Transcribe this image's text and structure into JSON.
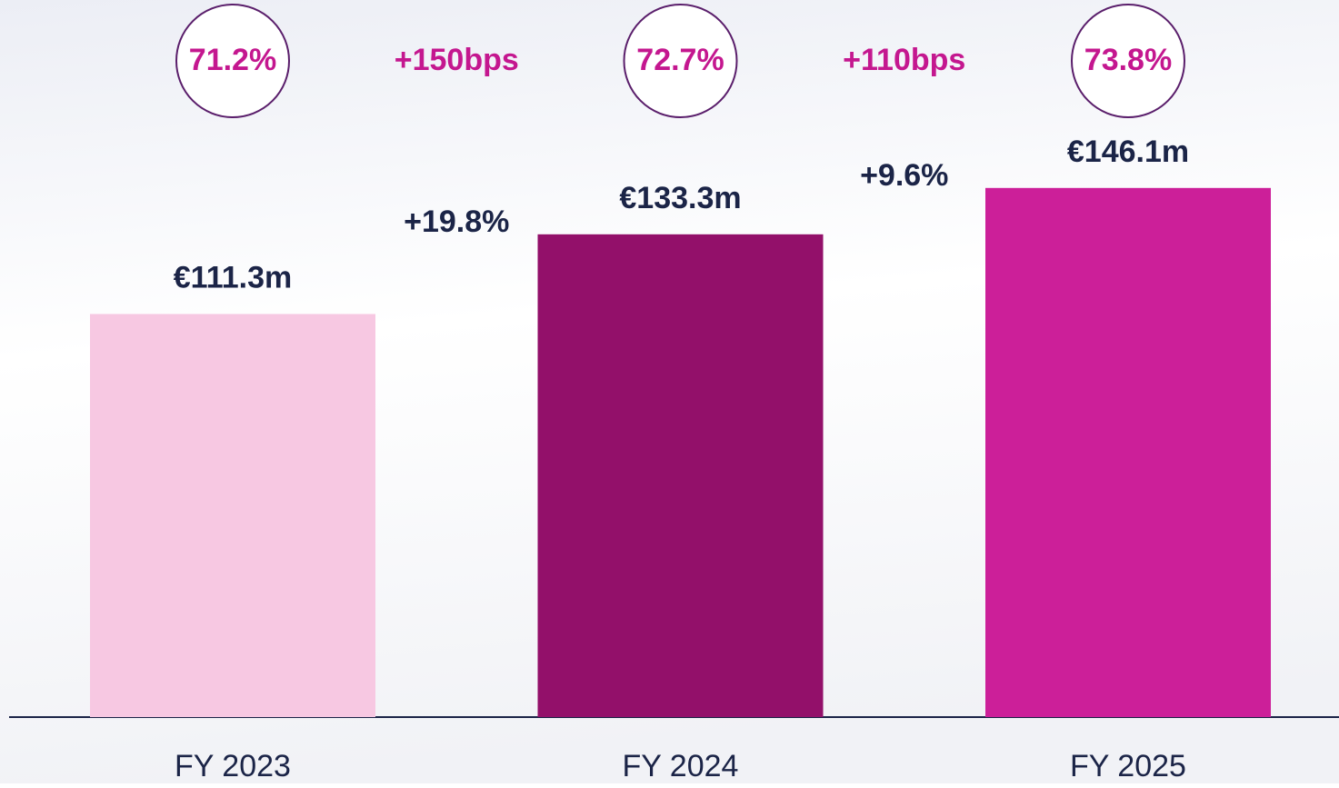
{
  "chart_data": {
    "type": "bar",
    "categories": [
      "FY 2023",
      "FY 2024",
      "FY 2025"
    ],
    "values": [
      111.3,
      133.3,
      146.1
    ],
    "value_labels": [
      "€111.3m",
      "€133.3m",
      "€146.1m"
    ],
    "colors": [
      "#f7c8e2",
      "#93106a",
      "#cc1f99"
    ],
    "ylim": [
      0,
      198
    ],
    "margins": {
      "values": [
        71.2,
        72.7,
        73.8
      ],
      "value_labels": [
        "71.2%",
        "72.7%",
        "73.8%"
      ]
    },
    "growth_labels": [
      "+19.8%",
      "+9.6%"
    ],
    "margin_change_labels": [
      "+150bps",
      "+110bps"
    ]
  }
}
